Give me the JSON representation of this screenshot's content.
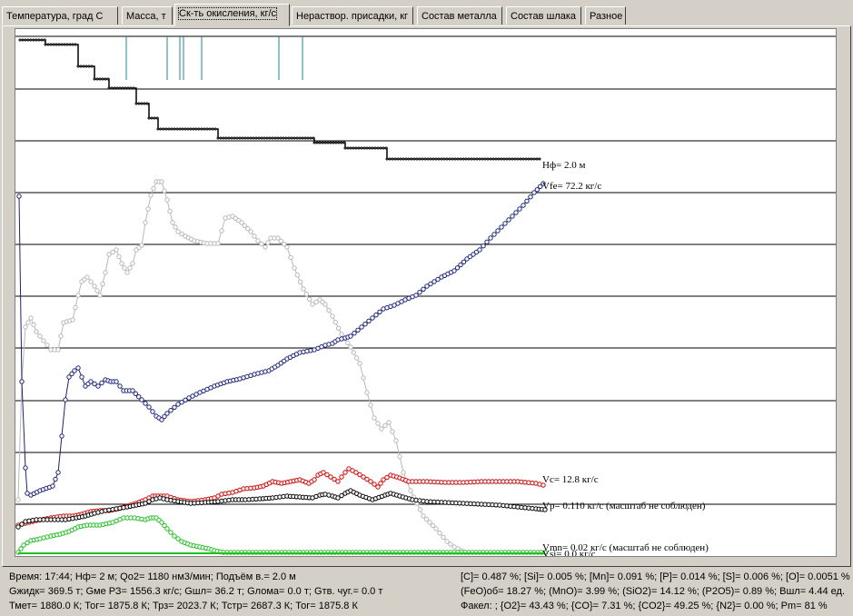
{
  "tabs": [
    {
      "label": "Температура, град С",
      "active": false
    },
    {
      "label": "Масса, т",
      "active": false
    },
    {
      "label": "Ск-ть окисления, кг/с",
      "active": true
    },
    {
      "label": "Нераствор. присадки, кг",
      "active": false
    },
    {
      "label": "Состав металла",
      "active": false
    },
    {
      "label": "Состав шлака",
      "active": false
    },
    {
      "label": "Разное",
      "active": false
    }
  ],
  "chart_data": {
    "type": "line",
    "grid": "horizontal",
    "series": [
      {
        "name": "Нф",
        "label": "Нф= 2.0 м",
        "color": "#000000"
      },
      {
        "name": "Vfe",
        "label": "Vfe= 72.2 кг/с",
        "color": "#1a237e"
      },
      {
        "name": "",
        "label": "",
        "color": "#b8b8b8"
      },
      {
        "name": "Vc",
        "label": "Vc= 12.8 кг/с",
        "color": "#e00000"
      },
      {
        "name": "Vp",
        "label": "Vp= 0.110 кг/с (масштаб не соблюден)",
        "color": "#000000"
      },
      {
        "name": "Vmn",
        "label": "Vmn= 0.02 кг/с (масштаб не соблюден)",
        "color": "#20c020"
      },
      {
        "name": "Vsi",
        "label": "Vsi= 0.0 кг/с",
        "color": "#20c020"
      }
    ]
  },
  "status": {
    "left": [
      "Время: 17:44; Нф= 2 м; Qo2= 1180 нм3/мин; Подъём в.= 2.0 м",
      "Gжидк= 369.5 т; Gме РЗ= 1556.3 кг/с; Gшл= 36.2 т; Gлома= 0.0 т; Gтв. чуг.= 0.0 т",
      "Тмет= 1880.0 К; Тог= 1875.8 К; Трз= 2023.7 К; Тстр= 2687.3 К; Тог= 1875.8 К"
    ],
    "right": [
      "[C]= 0.487 %; [Si]= 0.005 %; [Mn]= 0.091 %; [P]= 0.014 %; [S]= 0.006 %; [O]= 0.0051 %",
      "(FeO)об= 18.27 %; (MnO)= 3.99 %; (SiO2)= 14.12 %; (P2O5)= 0.89 %; Вшл= 4.44 ед.",
      "Факел: ; {O2}= 43.43 %; {CO}= 7.31 %; {CO2}= 49.25 %; {N2}= 0.00 %; Рm= 81 %"
    ]
  }
}
